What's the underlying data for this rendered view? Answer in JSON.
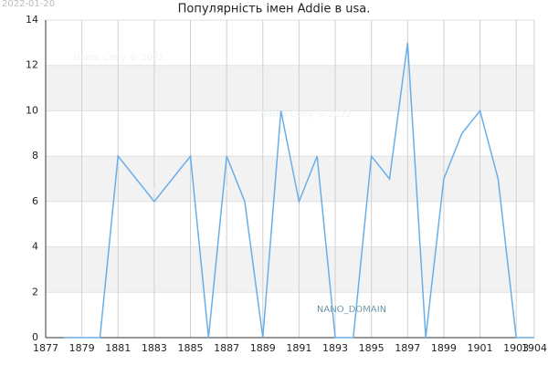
{
  "chart_data": {
    "type": "line",
    "title": "Популярність імен Addie в usa.",
    "date": "2022-01-20",
    "watermarks": [
      "Name Ceny © 2022",
      "Name Ceny © 2022",
      "Name Ceny © 2022"
    ],
    "badge": "NANO_DOMAIN",
    "x": [
      1878,
      1879,
      1880,
      1881,
      1882,
      1883,
      1884,
      1885,
      1886,
      1887,
      1888,
      1889,
      1890,
      1891,
      1892,
      1893,
      1894,
      1895,
      1896,
      1897,
      1898,
      1899,
      1900,
      1901,
      1902,
      1903,
      1904
    ],
    "series": [
      {
        "name": "Addie",
        "color": "#6aaee8",
        "values": [
          0,
          0,
          0,
          8,
          7,
          6,
          7,
          8,
          0,
          8,
          6,
          0,
          10,
          6,
          8,
          0,
          0,
          8,
          7,
          13,
          0,
          7,
          9,
          10,
          7,
          0,
          0
        ]
      }
    ],
    "xlim": [
      1877,
      1904
    ],
    "xticks": [
      1877,
      1879,
      1881,
      1883,
      1885,
      1887,
      1889,
      1891,
      1893,
      1895,
      1897,
      1899,
      1901,
      1903,
      1904
    ],
    "ylim": [
      0,
      14
    ],
    "yticks": [
      0,
      2,
      4,
      6,
      8,
      10,
      12,
      14
    ],
    "grid": true
  }
}
